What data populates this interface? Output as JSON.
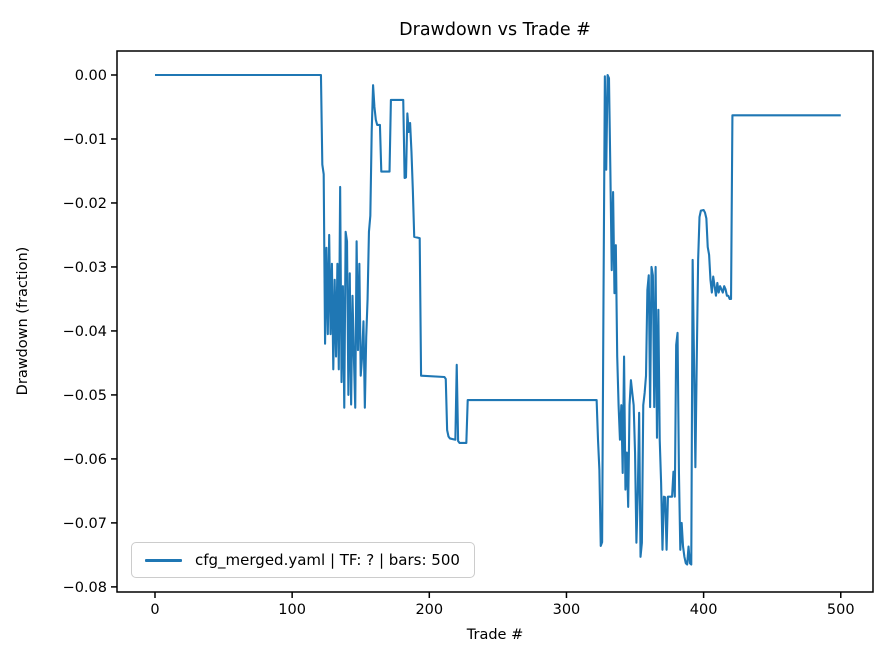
{
  "figure": {
    "background": "#ffffff"
  },
  "chart": {
    "title": "Drawdown vs Trade #",
    "xlabel": "Trade #",
    "ylabel": "Drawdown (fraction)",
    "legend_label": "cfg_merged.yaml | TF: ? | bars: 500"
  },
  "chart_data": {
    "type": "line",
    "title": "Drawdown vs Trade #",
    "xlabel": "Trade #",
    "ylabel": "Drawdown (fraction)",
    "grid": false,
    "legend_position": "lower left",
    "line_color": "#1f77b4",
    "axis_color": "#000000",
    "xlim": [
      -27.7,
      523.5
    ],
    "ylim": [
      -0.0808,
      0.00375
    ],
    "xticks": {
      "values": [
        0,
        100,
        200,
        300,
        400,
        500
      ],
      "labels": [
        "0",
        "100",
        "200",
        "300",
        "400",
        "500"
      ]
    },
    "yticks": {
      "values": [
        0.0,
        -0.01,
        -0.02,
        -0.03,
        -0.04,
        -0.05,
        -0.06,
        -0.07,
        -0.08
      ],
      "labels": [
        "0.00",
        "−0.01",
        "−0.02",
        "−0.03",
        "−0.04",
        "−0.05",
        "−0.06",
        "−0.07",
        "−0.08"
      ]
    },
    "series": [
      {
        "name": "cfg_merged.yaml | TF: ? | bars: 500",
        "color": "#1f77b4",
        "points": [
          [
            0,
            0
          ],
          [
            121,
            0
          ],
          [
            122,
            -0.014
          ],
          [
            123,
            -0.0155
          ],
          [
            124,
            -0.042
          ],
          [
            125,
            -0.027
          ],
          [
            126,
            -0.0405
          ],
          [
            127,
            -0.025
          ],
          [
            128,
            -0.0405
          ],
          [
            129,
            -0.0295
          ],
          [
            130,
            -0.046
          ],
          [
            131,
            -0.032
          ],
          [
            132,
            -0.044
          ],
          [
            133,
            -0.0295
          ],
          [
            134,
            -0.046
          ],
          [
            135,
            -0.0175
          ],
          [
            136,
            -0.048
          ],
          [
            137,
            -0.033
          ],
          [
            138,
            -0.052
          ],
          [
            139,
            -0.0245
          ],
          [
            140,
            -0.026
          ],
          [
            141,
            -0.05
          ],
          [
            142,
            -0.031
          ],
          [
            143,
            -0.0515
          ],
          [
            144,
            -0.0345
          ],
          [
            145,
            -0.044
          ],
          [
            146,
            -0.052
          ],
          [
            147,
            -0.026
          ],
          [
            148,
            -0.043
          ],
          [
            149,
            -0.0295
          ],
          [
            150,
            -0.047
          ],
          [
            151,
            -0.044
          ],
          [
            152,
            -0.0385
          ],
          [
            153,
            -0.052
          ],
          [
            154,
            -0.041
          ],
          [
            155,
            -0.035
          ],
          [
            156,
            -0.0245
          ],
          [
            157,
            -0.022
          ],
          [
            158,
            -0.0088
          ],
          [
            159,
            -0.0016
          ],
          [
            160,
            -0.005
          ],
          [
            161,
            -0.007
          ],
          [
            162,
            -0.0078
          ],
          [
            164,
            -0.0078
          ],
          [
            165,
            -0.0151
          ],
          [
            171,
            -0.0151
          ],
          [
            172,
            -0.0039
          ],
          [
            181,
            -0.0039
          ],
          [
            182,
            -0.0161
          ],
          [
            183,
            -0.016
          ],
          [
            184,
            -0.006
          ],
          [
            185,
            -0.0089
          ],
          [
            186,
            -0.0075
          ],
          [
            187,
            -0.012
          ],
          [
            188,
            -0.018
          ],
          [
            189,
            -0.0253
          ],
          [
            193,
            -0.0255
          ],
          [
            194,
            -0.047
          ],
          [
            211,
            -0.0472
          ],
          [
            212,
            -0.0475
          ],
          [
            213,
            -0.0555
          ],
          [
            214,
            -0.0565
          ],
          [
            215,
            -0.0568
          ],
          [
            219,
            -0.057
          ],
          [
            220,
            -0.0453
          ],
          [
            221,
            -0.0572
          ],
          [
            222,
            -0.0575
          ],
          [
            227,
            -0.0575
          ],
          [
            228,
            -0.0508
          ],
          [
            322,
            -0.0508
          ],
          [
            323,
            -0.057
          ],
          [
            324,
            -0.0617
          ],
          [
            325,
            -0.0736
          ],
          [
            326,
            -0.073
          ],
          [
            327,
            -0.035
          ],
          [
            328,
            -0.0002
          ],
          [
            329,
            -0.0148
          ],
          [
            330,
            0
          ],
          [
            331,
            -0.0005
          ],
          [
            332,
            -0.0148
          ],
          [
            333,
            -0.0305
          ],
          [
            334,
            -0.0183
          ],
          [
            335,
            -0.0341
          ],
          [
            336,
            -0.0266
          ],
          [
            337,
            -0.044
          ],
          [
            338,
            -0.0516
          ],
          [
            339,
            -0.057
          ],
          [
            340,
            -0.0516
          ],
          [
            341,
            -0.0622
          ],
          [
            342,
            -0.044
          ],
          [
            343,
            -0.0648
          ],
          [
            344,
            -0.059
          ],
          [
            345,
            -0.0675
          ],
          [
            346,
            -0.0516
          ],
          [
            347,
            -0.0477
          ],
          [
            348,
            -0.0497
          ],
          [
            349,
            -0.0516
          ],
          [
            350,
            -0.059
          ],
          [
            351,
            -0.0731
          ],
          [
            352,
            -0.0655
          ],
          [
            353,
            -0.0528
          ],
          [
            354,
            -0.0753
          ],
          [
            355,
            -0.0731
          ],
          [
            356,
            -0.0516
          ],
          [
            357,
            -0.0497
          ],
          [
            358,
            -0.047
          ],
          [
            359,
            -0.0336
          ],
          [
            360,
            -0.0313
          ],
          [
            361,
            -0.0519
          ],
          [
            362,
            -0.03
          ],
          [
            363,
            -0.0313
          ],
          [
            364,
            -0.0519
          ],
          [
            365,
            -0.03
          ],
          [
            366,
            -0.0567
          ],
          [
            367,
            -0.0367
          ],
          [
            368,
            -0.057
          ],
          [
            369,
            -0.0637
          ],
          [
            370,
            -0.0742
          ],
          [
            371,
            -0.0659
          ],
          [
            372,
            -0.066
          ],
          [
            373,
            -0.0742
          ],
          [
            374,
            -0.0659
          ],
          [
            377,
            -0.0659
          ],
          [
            378,
            -0.062
          ],
          [
            379,
            -0.0659
          ],
          [
            380,
            -0.0422
          ],
          [
            381,
            -0.0403
          ],
          [
            382,
            -0.062
          ],
          [
            383,
            -0.0742
          ],
          [
            384,
            -0.07
          ],
          [
            385,
            -0.0737
          ],
          [
            386,
            -0.0753
          ],
          [
            387,
            -0.0763
          ],
          [
            388,
            -0.0765
          ],
          [
            389,
            -0.0737
          ],
          [
            390,
            -0.0763
          ],
          [
            391,
            -0.0765
          ],
          [
            392,
            -0.0289
          ],
          [
            393,
            -0.0445
          ],
          [
            394,
            -0.0613
          ],
          [
            395,
            -0.0445
          ],
          [
            396,
            -0.0289
          ],
          [
            397,
            -0.0222
          ],
          [
            398,
            -0.0212
          ],
          [
            400,
            -0.0211
          ],
          [
            401,
            -0.0215
          ],
          [
            402,
            -0.0224
          ],
          [
            403,
            -0.0269
          ],
          [
            404,
            -0.0281
          ],
          [
            405,
            -0.032
          ],
          [
            406,
            -0.034
          ],
          [
            407,
            -0.0315
          ],
          [
            408,
            -0.033
          ],
          [
            409,
            -0.0345
          ],
          [
            410,
            -0.0325
          ],
          [
            411,
            -0.034
          ],
          [
            412,
            -0.033
          ],
          [
            413,
            -0.0335
          ],
          [
            414,
            -0.034
          ],
          [
            415,
            -0.033
          ],
          [
            416,
            -0.0335
          ],
          [
            417,
            -0.0345
          ],
          [
            418,
            -0.0345
          ],
          [
            419,
            -0.035
          ],
          [
            420,
            -0.035
          ],
          [
            421,
            -0.0063
          ],
          [
            500,
            -0.0063
          ]
        ]
      }
    ]
  }
}
